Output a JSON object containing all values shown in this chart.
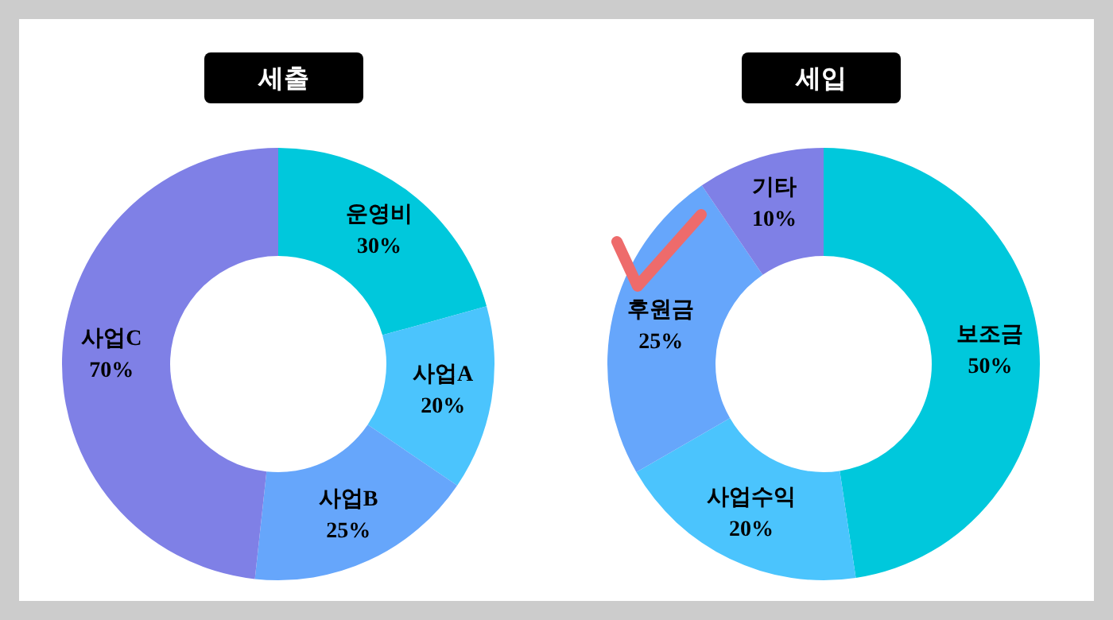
{
  "chart_data": [
    {
      "type": "donut",
      "title": "세출",
      "categories": [
        "운영비",
        "사업A",
        "사업B",
        "사업C"
      ],
      "values": [
        30,
        20,
        25,
        70
      ],
      "value_labels": [
        "30%",
        "20%",
        "25%",
        "70%"
      ],
      "colors": [
        "#00c8dc",
        "#4bc4fd",
        "#66a6fb",
        "#7f80e6"
      ]
    },
    {
      "type": "donut",
      "title": "세입",
      "categories": [
        "보조금",
        "사업수익",
        "후원금",
        "기타"
      ],
      "values": [
        50,
        20,
        25,
        10
      ],
      "value_labels": [
        "50%",
        "20%",
        "25%",
        "10%"
      ],
      "colors": [
        "#00c8dc",
        "#4bc4fd",
        "#66a6fb",
        "#7f80e6"
      ]
    }
  ]
}
